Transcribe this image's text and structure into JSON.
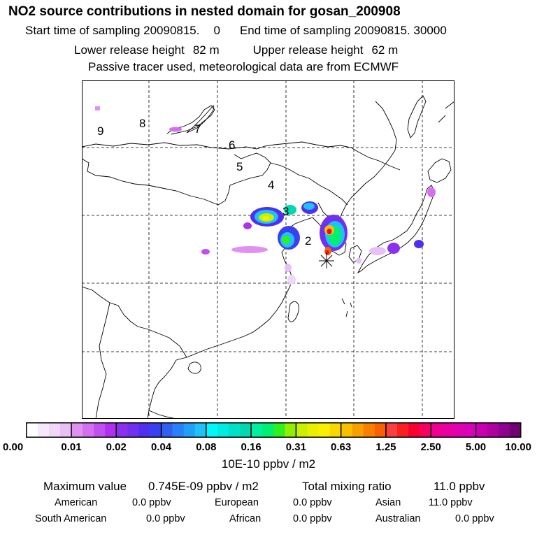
{
  "header": {
    "title": "NO2 source contributions in nested domain for gosan_200908",
    "start_label": "Start time of sampling 20090815.",
    "start_value": "0",
    "end_label": "End time of sampling 20090815. 30000",
    "lower_label": "Lower release height",
    "lower_value": "82 m",
    "upper_label": "Upper release height",
    "upper_value": "62 m",
    "info": "Passive tracer used, meteorological data are from ECMWF"
  },
  "map": {
    "contour_labels": [
      "9",
      "8",
      "7",
      "6",
      "5",
      "4",
      "3",
      "2"
    ],
    "receptor_symbol": "*"
  },
  "colorbar": {
    "tick_labels": [
      "0.00",
      "0.01",
      "0.02",
      "0.04",
      "0.08",
      "0.16",
      "0.31",
      "0.63",
      "1.25",
      "2.50",
      "5.00",
      "10.00"
    ],
    "units": "10E-10 ppbv / m2",
    "colors": [
      "#ffffff",
      "#f6e8fb",
      "#f0d6f8",
      "#e8bff6",
      "#e090f0",
      "#d470f0",
      "#c050f0",
      "#b030f0",
      "#8c30f0",
      "#7030f0",
      "#5030f0",
      "#3a40f0",
      "#3060f0",
      "#2a80f8",
      "#20a0f8",
      "#20c0f8",
      "#00f8f8",
      "#00ece0",
      "#00e0c8",
      "#00d8b0",
      "#00f0a0",
      "#00f070",
      "#30f020",
      "#90f000",
      "#c8f000",
      "#e8f000",
      "#f8f000",
      "#f8d800",
      "#f8c000",
      "#f8a000",
      "#f88000",
      "#f86000",
      "#f84040",
      "#f82020",
      "#f80030",
      "#f80060",
      "#f00090",
      "#e800a0",
      "#e000b0",
      "#d800b8",
      "#c800b0",
      "#b000a0",
      "#900090",
      "#700070"
    ]
  },
  "stats": {
    "max_label": "Maximum value",
    "max_value": "0.745E-09 ppbv / m2",
    "total_label": "Total mixing ratio",
    "total_value": "11.0 ppbv",
    "regions": [
      {
        "name": "American",
        "value": "0.0 ppbv"
      },
      {
        "name": "European",
        "value": "0.0 ppbv"
      },
      {
        "name": "Asian",
        "value": "11.0 ppbv"
      },
      {
        "name": "South American",
        "value": "0.0 ppbv"
      },
      {
        "name": "African",
        "value": "0.0 ppbv"
      },
      {
        "name": "Australian",
        "value": "0.0 ppbv"
      }
    ]
  }
}
